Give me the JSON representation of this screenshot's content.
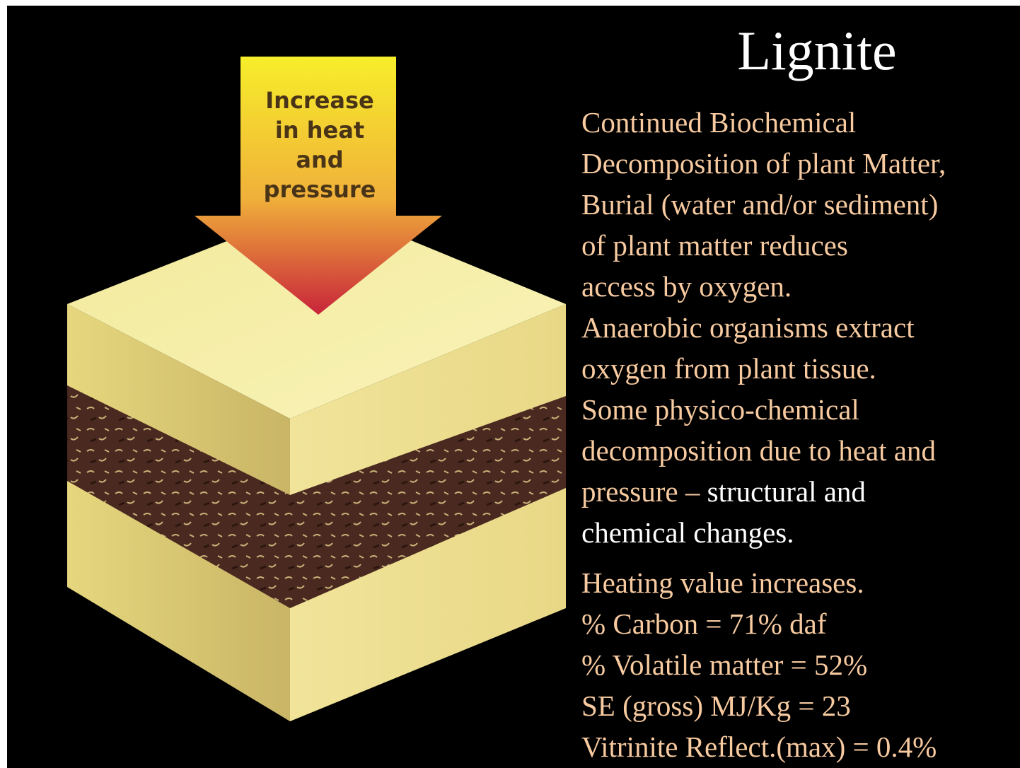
{
  "title": "Lignite",
  "arrow_label": [
    "Increase",
    "in heat",
    "and",
    "pressure"
  ],
  "description": [
    [
      {
        "text": "Continued Biochemical",
        "color": "#f7caa0"
      }
    ],
    [
      {
        "text": "Decomposition of plant Matter,",
        "color": "#f7caa0"
      }
    ],
    [
      {
        "text": "Burial (water and/or sediment)",
        "color": "#f7caa0"
      }
    ],
    [
      {
        "text": "of  plant matter reduces",
        "color": "#f7caa0"
      }
    ],
    [
      {
        "text": "access by oxygen.",
        "color": "#f7caa0"
      }
    ],
    [
      {
        "text": "Anaerobic organisms extract",
        "color": "#f7caa0"
      }
    ],
    [
      {
        "text": "oxygen from plant tissue.",
        "color": "#f7caa0"
      }
    ],
    [
      {
        "text": "Some physico-chemical",
        "color": "#f7caa0"
      }
    ],
    [
      {
        "text": "decomposition due to heat and",
        "color": "#f7caa0"
      }
    ],
    [
      {
        "text": "pressure – ",
        "color": "#f7caa0"
      },
      {
        "text": "structural and",
        "color": "#ffffff"
      }
    ],
    [
      {
        "text": "chemical changes.",
        "color": "#ffffff"
      }
    ]
  ],
  "facts": [
    "Heating value increases.",
    "% Carbon = 71% daf",
    "% Volatile matter = 52%",
    "SE (gross) MJ/Kg = 23",
    "Vitrinite Reflect.(max) = 0.4%"
  ],
  "facts_color": "#f7caa0"
}
